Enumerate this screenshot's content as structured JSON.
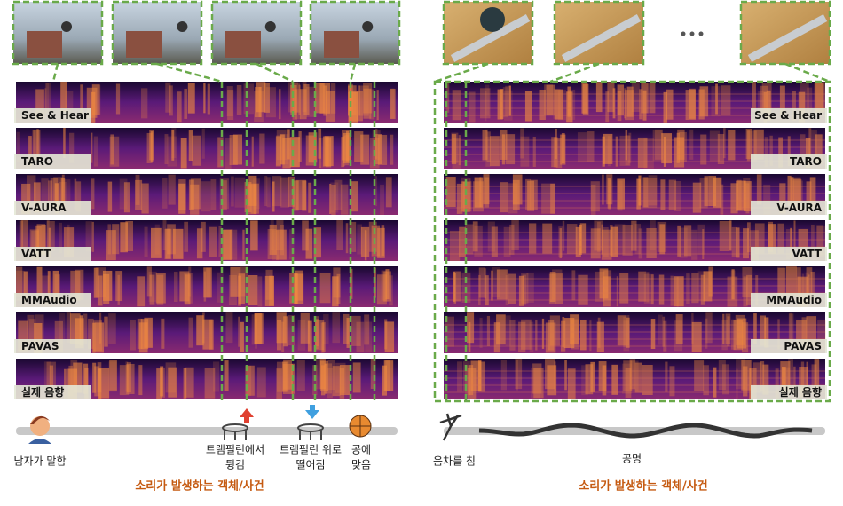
{
  "left_panel": {
    "rows": [
      "See & Hear",
      "TARO",
      "V-AURA",
      "VATT",
      "MMAudio",
      "PAVAS",
      "실제 음향"
    ],
    "events": [
      {
        "lines": [
          "남자가 말함"
        ]
      },
      {
        "lines": [
          "트램펄린에서",
          "튕김"
        ]
      },
      {
        "lines": [
          "트램펄린 위로",
          "떨어짐"
        ]
      },
      {
        "lines": [
          "공에",
          "맞음"
        ]
      }
    ],
    "caption": "소리가 발생하는 객체/사건"
  },
  "right_panel": {
    "rows": [
      "See & Hear",
      "TARO",
      "V-AURA",
      "VATT",
      "MMAudio",
      "PAVAS",
      "실제 음향"
    ],
    "events": [
      {
        "lines": [
          "음차를 침"
        ]
      },
      {
        "lines": [
          "공명"
        ]
      }
    ],
    "caption": "소리가 발생하는 객체/사건"
  }
}
